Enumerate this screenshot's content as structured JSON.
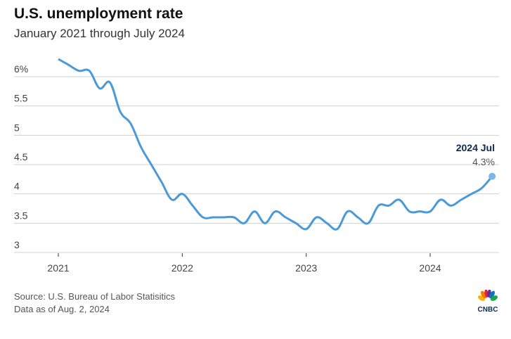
{
  "header": {
    "title": "U.S. unemployment rate",
    "subtitle": "January 2021 through July 2024"
  },
  "footer": {
    "source": "Source: U.S. Bureau of Labor Statisitics",
    "data_as_of": "Data as of Aug. 2, 2024"
  },
  "logo": {
    "text": "CNBC"
  },
  "colors": {
    "line": "#4a9ad9",
    "annotation_title": "#0d2a4e",
    "grid": "#d0d0d0"
  },
  "chart_data": {
    "type": "line",
    "title": "U.S. unemployment rate",
    "subtitle": "January 2021 through July 2024",
    "xlabel": "",
    "ylabel": "",
    "ylim": [
      3,
      6
    ],
    "y_ticks": [
      3,
      3.5,
      4,
      4.5,
      5,
      5.5,
      6
    ],
    "y_tick_labels": [
      "3",
      "3.5",
      "4",
      "4.5",
      "5",
      "5.5",
      "6%"
    ],
    "x_tick_labels": [
      "2021",
      "2022",
      "2023",
      "2024"
    ],
    "grid": true,
    "start": "2021-01",
    "series": [
      {
        "name": "Unemployment rate",
        "values": [
          6.3,
          6.2,
          6.1,
          6.1,
          5.8,
          5.9,
          5.4,
          5.2,
          4.8,
          4.5,
          4.2,
          3.9,
          4.0,
          3.8,
          3.6,
          3.6,
          3.6,
          3.6,
          3.5,
          3.7,
          3.5,
          3.7,
          3.6,
          3.5,
          3.4,
          3.6,
          3.5,
          3.4,
          3.7,
          3.6,
          3.5,
          3.8,
          3.8,
          3.9,
          3.7,
          3.7,
          3.7,
          3.9,
          3.8,
          3.9,
          4.0,
          4.1,
          4.3
        ]
      }
    ],
    "annotation": {
      "label": "2024 Jul",
      "value": "4.3%"
    }
  }
}
